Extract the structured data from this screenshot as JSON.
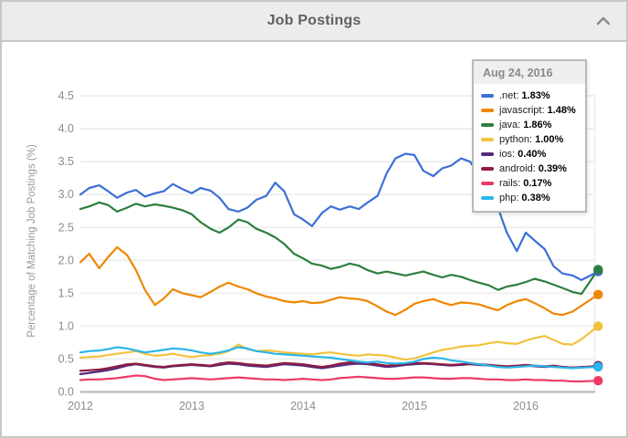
{
  "header": {
    "title": "Job Postings",
    "collapse_icon": "chevron-up"
  },
  "chart_data": {
    "type": "line",
    "title": "Job Postings",
    "xlabel": "",
    "ylabel": "Percentage of Matching Job Postings (%)",
    "xlim": [
      2012,
      2016.7
    ],
    "ylim": [
      0,
      4.5
    ],
    "grid": "horizontal",
    "legend_position": "tooltip-top-right",
    "x_ticks": [
      "2012",
      "2013",
      "2014",
      "2015",
      "2016"
    ],
    "y_ticks": [
      "0.0",
      "0.5",
      "1.0",
      "1.5",
      "2.0",
      "2.5",
      "3.0",
      "3.5",
      "4.0",
      "4.5"
    ],
    "x": [
      2012.0,
      2012.08,
      2012.17,
      2012.25,
      2012.33,
      2012.42,
      2012.5,
      2012.58,
      2012.67,
      2012.75,
      2012.83,
      2012.92,
      2013.0,
      2013.08,
      2013.17,
      2013.25,
      2013.33,
      2013.42,
      2013.5,
      2013.58,
      2013.67,
      2013.75,
      2013.83,
      2013.92,
      2014.0,
      2014.08,
      2014.17,
      2014.25,
      2014.33,
      2014.42,
      2014.5,
      2014.58,
      2014.67,
      2014.75,
      2014.83,
      2014.92,
      2015.0,
      2015.08,
      2015.17,
      2015.25,
      2015.33,
      2015.42,
      2015.5,
      2015.58,
      2015.67,
      2015.75,
      2015.83,
      2015.92,
      2016.0,
      2016.08,
      2016.17,
      2016.25,
      2016.33,
      2016.42,
      2016.5,
      2016.65
    ],
    "tooltip": {
      "date": "Aug 24, 2016"
    },
    "series": [
      {
        "name": ".net",
        "color": "#3b6fd7",
        "tooltip_value": "1.83%",
        "values": [
          3.0,
          3.1,
          3.14,
          3.05,
          2.95,
          3.03,
          3.07,
          2.97,
          3.02,
          3.05,
          3.16,
          3.08,
          3.02,
          3.1,
          3.06,
          2.95,
          2.78,
          2.74,
          2.8,
          2.92,
          2.98,
          3.18,
          3.05,
          2.7,
          2.62,
          2.52,
          2.72,
          2.82,
          2.77,
          2.82,
          2.78,
          2.88,
          2.98,
          3.32,
          3.55,
          3.62,
          3.6,
          3.36,
          3.28,
          3.4,
          3.44,
          3.55,
          3.5,
          3.3,
          3.1,
          2.8,
          2.42,
          2.14,
          2.42,
          2.3,
          2.17,
          1.91,
          1.8,
          1.77,
          1.7,
          1.83
        ]
      },
      {
        "name": "javascript",
        "color": "#ef8700",
        "tooltip_value": "1.48%",
        "values": [
          1.97,
          2.1,
          1.88,
          2.05,
          2.2,
          2.08,
          1.85,
          1.55,
          1.32,
          1.42,
          1.56,
          1.5,
          1.47,
          1.44,
          1.52,
          1.6,
          1.66,
          1.6,
          1.56,
          1.5,
          1.45,
          1.42,
          1.38,
          1.36,
          1.38,
          1.35,
          1.36,
          1.4,
          1.44,
          1.42,
          1.41,
          1.38,
          1.3,
          1.22,
          1.17,
          1.25,
          1.34,
          1.38,
          1.41,
          1.36,
          1.32,
          1.36,
          1.35,
          1.33,
          1.28,
          1.24,
          1.32,
          1.38,
          1.41,
          1.35,
          1.27,
          1.19,
          1.17,
          1.22,
          1.31,
          1.48
        ]
      },
      {
        "name": "java",
        "color": "#2d7e3f",
        "tooltip_value": "1.86%",
        "values": [
          2.78,
          2.82,
          2.88,
          2.84,
          2.74,
          2.8,
          2.86,
          2.82,
          2.85,
          2.83,
          2.8,
          2.76,
          2.7,
          2.58,
          2.48,
          2.42,
          2.5,
          2.62,
          2.58,
          2.48,
          2.42,
          2.35,
          2.25,
          2.1,
          2.03,
          1.95,
          1.92,
          1.87,
          1.9,
          1.95,
          1.92,
          1.85,
          1.8,
          1.83,
          1.8,
          1.77,
          1.8,
          1.83,
          1.78,
          1.74,
          1.78,
          1.75,
          1.7,
          1.66,
          1.62,
          1.55,
          1.6,
          1.63,
          1.67,
          1.72,
          1.68,
          1.63,
          1.58,
          1.52,
          1.49,
          1.86
        ]
      },
      {
        "name": "python",
        "color": "#f0c33c",
        "tooltip_value": "1.00%",
        "values": [
          0.52,
          0.53,
          0.54,
          0.56,
          0.58,
          0.6,
          0.62,
          0.58,
          0.55,
          0.56,
          0.58,
          0.55,
          0.53,
          0.55,
          0.56,
          0.58,
          0.62,
          0.72,
          0.65,
          0.62,
          0.63,
          0.62,
          0.6,
          0.59,
          0.58,
          0.57,
          0.59,
          0.6,
          0.58,
          0.56,
          0.55,
          0.57,
          0.56,
          0.55,
          0.52,
          0.49,
          0.51,
          0.55,
          0.6,
          0.64,
          0.66,
          0.69,
          0.7,
          0.71,
          0.74,
          0.76,
          0.74,
          0.73,
          0.78,
          0.82,
          0.85,
          0.79,
          0.73,
          0.72,
          0.8,
          1.0
        ]
      },
      {
        "name": "ios",
        "color": "#55297b",
        "tooltip_value": "0.40%",
        "values": [
          0.27,
          0.29,
          0.31,
          0.33,
          0.36,
          0.4,
          0.42,
          0.4,
          0.38,
          0.37,
          0.39,
          0.4,
          0.41,
          0.4,
          0.39,
          0.41,
          0.43,
          0.42,
          0.4,
          0.39,
          0.38,
          0.4,
          0.42,
          0.41,
          0.4,
          0.38,
          0.36,
          0.38,
          0.4,
          0.42,
          0.43,
          0.42,
          0.4,
          0.38,
          0.39,
          0.41,
          0.42,
          0.43,
          0.42,
          0.41,
          0.4,
          0.41,
          0.42,
          0.41,
          0.4,
          0.39,
          0.38,
          0.39,
          0.4,
          0.39,
          0.38,
          0.39,
          0.38,
          0.37,
          0.37,
          0.4
        ]
      },
      {
        "name": "android",
        "color": "#8e1c40",
        "tooltip_value": "0.39%",
        "values": [
          0.32,
          0.33,
          0.34,
          0.36,
          0.39,
          0.42,
          0.43,
          0.41,
          0.39,
          0.38,
          0.4,
          0.41,
          0.42,
          0.41,
          0.4,
          0.43,
          0.45,
          0.44,
          0.42,
          0.41,
          0.4,
          0.42,
          0.44,
          0.43,
          0.42,
          0.4,
          0.38,
          0.4,
          0.43,
          0.45,
          0.46,
          0.44,
          0.42,
          0.4,
          0.41,
          0.43,
          0.44,
          0.44,
          0.43,
          0.42,
          0.41,
          0.42,
          0.43,
          0.42,
          0.41,
          0.4,
          0.39,
          0.4,
          0.41,
          0.4,
          0.39,
          0.4,
          0.38,
          0.37,
          0.38,
          0.39
        ]
      },
      {
        "name": "rails",
        "color": "#ee3a66",
        "tooltip_value": "0.17%",
        "values": [
          0.18,
          0.19,
          0.19,
          0.2,
          0.21,
          0.23,
          0.25,
          0.24,
          0.2,
          0.18,
          0.19,
          0.2,
          0.21,
          0.2,
          0.19,
          0.2,
          0.21,
          0.22,
          0.21,
          0.2,
          0.19,
          0.19,
          0.18,
          0.19,
          0.2,
          0.19,
          0.18,
          0.19,
          0.21,
          0.22,
          0.23,
          0.22,
          0.21,
          0.2,
          0.2,
          0.21,
          0.22,
          0.22,
          0.21,
          0.2,
          0.2,
          0.21,
          0.21,
          0.2,
          0.19,
          0.19,
          0.18,
          0.18,
          0.19,
          0.18,
          0.18,
          0.17,
          0.17,
          0.16,
          0.16,
          0.17
        ]
      },
      {
        "name": "php",
        "color": "#29b6ea",
        "tooltip_value": "0.38%",
        "values": [
          0.6,
          0.62,
          0.63,
          0.65,
          0.68,
          0.66,
          0.63,
          0.6,
          0.62,
          0.64,
          0.66,
          0.65,
          0.63,
          0.6,
          0.58,
          0.6,
          0.63,
          0.68,
          0.66,
          0.62,
          0.6,
          0.58,
          0.57,
          0.56,
          0.55,
          0.54,
          0.53,
          0.52,
          0.5,
          0.48,
          0.46,
          0.45,
          0.46,
          0.44,
          0.43,
          0.44,
          0.46,
          0.5,
          0.52,
          0.51,
          0.48,
          0.46,
          0.44,
          0.42,
          0.4,
          0.38,
          0.37,
          0.38,
          0.39,
          0.4,
          0.39,
          0.38,
          0.37,
          0.36,
          0.37,
          0.38
        ]
      }
    ]
  }
}
